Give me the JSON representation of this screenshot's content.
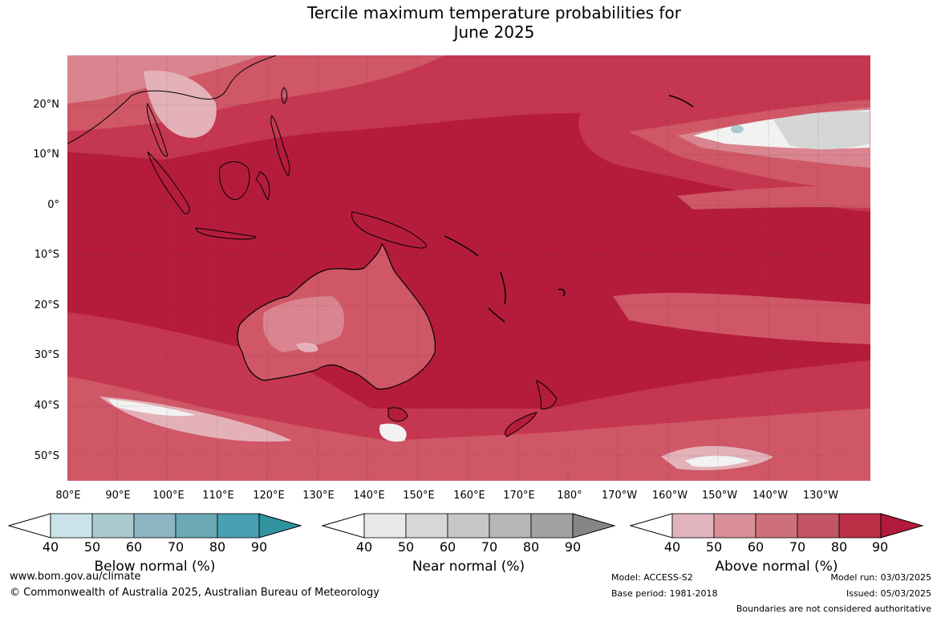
{
  "title_line1": "Tercile maximum temperature probabilities for",
  "title_line2": "June 2025",
  "map": {
    "lat_labels": [
      "20°N",
      "10°N",
      "0°",
      "10°S",
      "20°S",
      "30°S",
      "40°S",
      "50°S"
    ],
    "lon_labels": [
      "80°E",
      "90°E",
      "100°E",
      "110°E",
      "120°E",
      "130°E",
      "140°E",
      "150°E",
      "160°E",
      "170°E",
      "180°",
      "170°W",
      "160°W",
      "150°W",
      "140°W",
      "130°W"
    ],
    "dominant_category": "Above normal",
    "colors": {
      "ocean_dominant": "#b51c3c",
      "above_80": "#c53750",
      "above_70": "#cf5766",
      "above_60": "#d9848e",
      "above_50": "#e4b1b9",
      "near_white": "#f2f2f2",
      "near_grey": "#d6d6d6",
      "coast": "#000000",
      "border": "#777777"
    }
  },
  "colorbars": [
    {
      "title": "Below normal (%)",
      "ticks": [
        "40",
        "50",
        "60",
        "70",
        "80",
        "90"
      ],
      "colors": [
        "#ffffff",
        "#cbe2e8",
        "#a9cace",
        "#8cb5c1",
        "#6ca9b6",
        "#48a0b2",
        "#31939f"
      ]
    },
    {
      "title": "Near normal (%)",
      "ticks": [
        "40",
        "50",
        "60",
        "70",
        "80",
        "90"
      ],
      "colors": [
        "#ffffff",
        "#e8e8e8",
        "#d7d7d7",
        "#c7c7c7",
        "#b6b6b6",
        "#a2a2a2",
        "#858585"
      ]
    },
    {
      "title": "Above normal (%)",
      "ticks": [
        "40",
        "50",
        "60",
        "70",
        "80",
        "90"
      ],
      "colors": [
        "#ffffff",
        "#e1b4bd",
        "#d98f98",
        "#cd707b",
        "#c35463",
        "#bc3047",
        "#b3193a"
      ]
    }
  ],
  "footer": {
    "website": "www.bom.gov.au/climate",
    "copyright": "© Commonwealth of Australia 2025, Australian Bureau of Meteorology",
    "model": "Model: ACCESS-S2",
    "base_period": "Base period: 1981-2018",
    "model_run": "Model run: 03/03/2025",
    "issued": "Issued: 05/03/2025",
    "boundaries_note": "Boundaries are not considered authoritative"
  }
}
